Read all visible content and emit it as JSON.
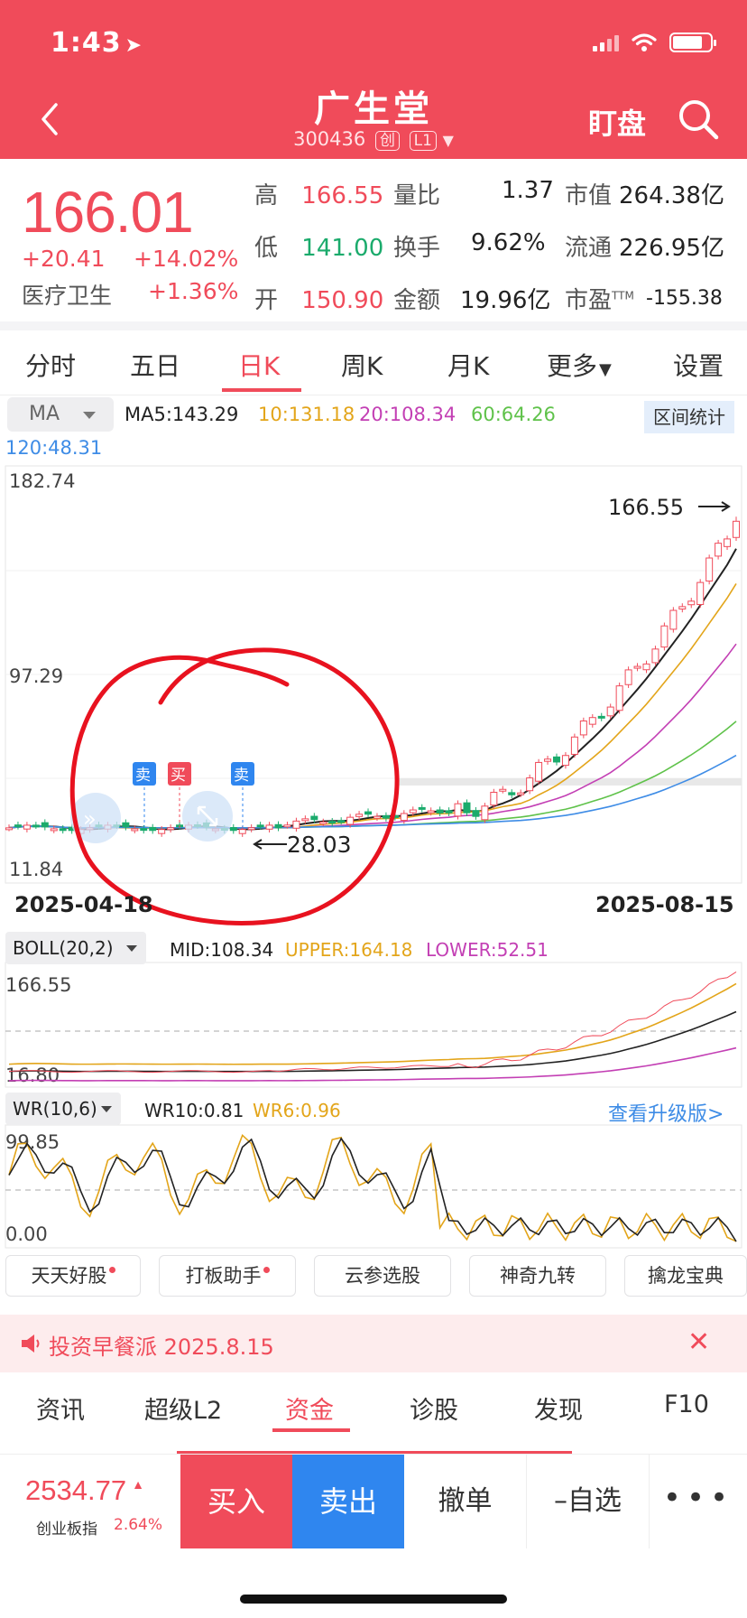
{
  "status": {
    "time": "1:43"
  },
  "header": {
    "title": "广生堂",
    "code": "300436",
    "board_tag": "创",
    "level_tag": "L1",
    "watch_label": "盯盘"
  },
  "quote": {
    "price": "166.01",
    "change": "+20.41",
    "change_pct": "+14.02%",
    "sector": "医疗卫生",
    "sector_pct": "+1.36%",
    "high_label": "高",
    "high": "166.55",
    "low_label": "低",
    "low": "141.00",
    "open_label": "开",
    "open": "150.90",
    "vol_ratio_label": "量比",
    "vol_ratio": "1.37",
    "turnover_label": "换手",
    "turnover": "9.62%",
    "amount_label": "金额",
    "amount": "19.96亿",
    "mktcap_label": "市值",
    "mktcap": "264.38亿",
    "float_label": "流通",
    "float": "226.95亿",
    "pe_label": "市盈",
    "pe_sup": "TTM",
    "pe": "-155.38"
  },
  "period_tabs": [
    "分时",
    "五日",
    "日K",
    "周K",
    "月K",
    "更多",
    "设置"
  ],
  "active_period": 2,
  "ma": {
    "selector": "MA",
    "ma5": "MA5:143.29",
    "ma10": "10:131.18",
    "ma20": "20:108.34",
    "ma60": "60:64.26",
    "ma120": "120:48.31",
    "range_stats": "区间统计",
    "colors": {
      "ma5": "#222222",
      "ma10": "#e3a51a",
      "ma20": "#c33fb4",
      "ma60": "#5fc24a",
      "ma120": "#3e8ce6"
    }
  },
  "kchart": {
    "y_top": "182.74",
    "y_mid": "97.29",
    "y_bottom": "11.84",
    "x_start": "2025-04-18",
    "x_end": "2025-08-15",
    "high_marker": "166.55",
    "low_marker": "28.03",
    "sell_tag": "卖",
    "buy_tag": "买"
  },
  "chart_data": {
    "type": "candlestick",
    "x_range": [
      "2025-04-18",
      "2025-08-15"
    ],
    "ylim": [
      11.84,
      182.74
    ],
    "annotations": {
      "period_high": 166.55,
      "period_low": 28.03
    },
    "last_close": 166.01,
    "moving_averages": {
      "MA5": 143.29,
      "MA10": 131.18,
      "MA20": 108.34,
      "MA60": 64.26,
      "MA120": 48.31
    },
    "boll": {
      "params": "20,2",
      "mid": 108.34,
      "upper": 164.18,
      "lower": 52.51,
      "ylim": [
        16.8,
        166.55
      ]
    },
    "wr": {
      "params": "10,6",
      "wr10": 0.81,
      "wr6": 0.96,
      "ylim": [
        0.0,
        99.85
      ]
    }
  },
  "boll": {
    "selector": "BOLL(20,2)",
    "mid": "MID:108.34",
    "upper": "UPPER:164.18",
    "lower": "LOWER:52.51",
    "y_top": "166.55",
    "y_bottom": "16.80"
  },
  "wr": {
    "selector": "WR(10,6)",
    "wr10": "WR10:0.81",
    "wr6": "WR6:0.96",
    "y_top": "99.85",
    "y_bottom": "0.00",
    "upgrade": "查看升级版>"
  },
  "tools": [
    "天天好股",
    "打板助手",
    "云参选股",
    "神奇九转",
    "擒龙宝典"
  ],
  "banner": {
    "text": "投资早餐派 2025.8.15"
  },
  "bottom_tabs": [
    "资讯",
    "超级L2",
    "资金",
    "诊股",
    "发现",
    "F10"
  ],
  "active_bottom_tab": 2,
  "trade": {
    "index_value": "2534.77",
    "index_name": "创业板指",
    "index_pct": "2.64%",
    "buy": "买入",
    "sell": "卖出",
    "cancel": "撤单",
    "fav": "–自选"
  }
}
